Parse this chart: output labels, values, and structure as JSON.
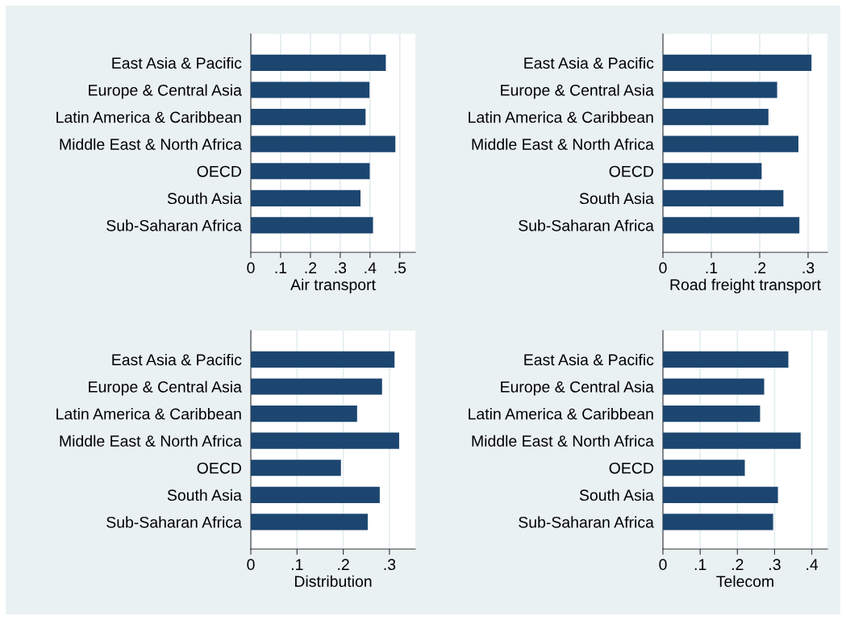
{
  "chart_data": [
    {
      "type": "bar",
      "orientation": "horizontal",
      "xlabel": "Air transport",
      "categories": [
        "East Asia & Pacific",
        "Europe & Central Asia",
        "Latin America & Caribbean",
        "Middle East & North Africa",
        "OECD",
        "South Asia",
        "Sub-Saharan Africa"
      ],
      "values": [
        0.453,
        0.398,
        0.385,
        0.485,
        0.399,
        0.368,
        0.41
      ],
      "color": "#1c4670",
      "xlim": [
        0,
        0.552
      ],
      "xticks": [
        0,
        {
          "value": 0.1,
          "label": ".1"
        },
        {
          "value": 0.2,
          "label": ".2"
        },
        {
          "value": 0.3,
          "label": ".3"
        },
        {
          "value": 0.4,
          "label": ".4"
        },
        {
          "value": 0.5,
          "label": ".5"
        }
      ],
      "grid": "x"
    },
    {
      "type": "bar",
      "orientation": "horizontal",
      "xlabel": "Road freight transport",
      "categories": [
        "East Asia & Pacific",
        "Europe & Central Asia",
        "Latin America & Caribbean",
        "Middle East & North Africa",
        "OECD",
        "South Asia",
        "Sub-Saharan Africa"
      ],
      "values": [
        0.307,
        0.236,
        0.218,
        0.28,
        0.204,
        0.249,
        0.282
      ],
      "color": "#1c4670",
      "xlim": [
        0,
        0.34
      ],
      "xticks": [
        0,
        {
          "value": 0.1,
          "label": ".1"
        },
        {
          "value": 0.2,
          "label": ".2"
        },
        {
          "value": 0.3,
          "label": ".3"
        }
      ],
      "grid": "x"
    },
    {
      "type": "bar",
      "orientation": "horizontal",
      "xlabel": "Distribution",
      "categories": [
        "East Asia & Pacific",
        "Europe & Central Asia",
        "Latin America & Caribbean",
        "Middle East & North Africa",
        "OECD",
        "South Asia",
        "Sub-Saharan Africa"
      ],
      "values": [
        0.311,
        0.284,
        0.23,
        0.321,
        0.195,
        0.279,
        0.253
      ],
      "color": "#1c4670",
      "xlim": [
        0,
        0.356
      ],
      "xticks": [
        0,
        {
          "value": 0.1,
          "label": ".1"
        },
        {
          "value": 0.2,
          "label": ".2"
        },
        {
          "value": 0.3,
          "label": ".3"
        }
      ],
      "grid": "x"
    },
    {
      "type": "bar",
      "orientation": "horizontal",
      "xlabel": "Telecom",
      "categories": [
        "East Asia & Pacific",
        "Europe & Central Asia",
        "Latin America & Caribbean",
        "Middle East & North Africa",
        "OECD",
        "South Asia",
        "Sub-Saharan Africa"
      ],
      "values": [
        0.337,
        0.272,
        0.261,
        0.37,
        0.22,
        0.309,
        0.296
      ],
      "color": "#1c4670",
      "xlim": [
        0,
        0.442
      ],
      "xticks": [
        0,
        {
          "value": 0.1,
          "label": ".1"
        },
        {
          "value": 0.2,
          "label": ".2"
        },
        {
          "value": 0.3,
          "label": ".3"
        },
        {
          "value": 0.4,
          "label": ".4"
        }
      ],
      "grid": "x"
    }
  ]
}
